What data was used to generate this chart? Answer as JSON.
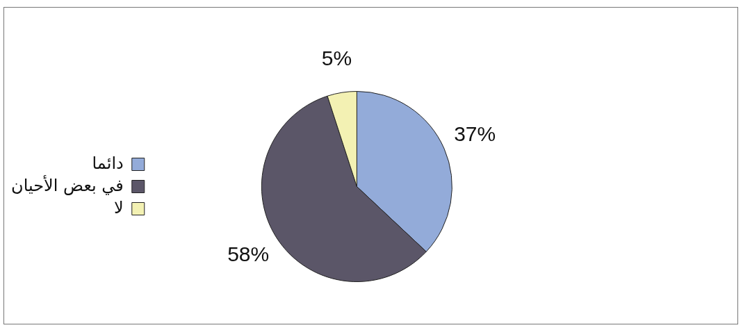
{
  "chart_data": {
    "type": "pie",
    "categories": [
      "دائما",
      "في بعض الأحيان",
      "لا"
    ],
    "values": [
      37,
      58,
      5
    ],
    "colors": [
      "#93abd9",
      "#5b5668",
      "#f3f1b3"
    ],
    "value_labels": [
      "37%",
      "58%",
      "5%"
    ],
    "legend": "left"
  }
}
